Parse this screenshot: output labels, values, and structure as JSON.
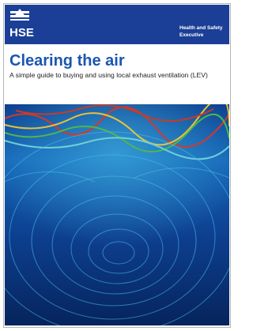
{
  "header": {
    "logo": "HSE",
    "organization": [
      "Health and Safety",
      "Executive"
    ]
  },
  "title": "Clearing the air",
  "subtitle": "A simple guide to buying and using local exhaust ventilation (LEV)"
}
